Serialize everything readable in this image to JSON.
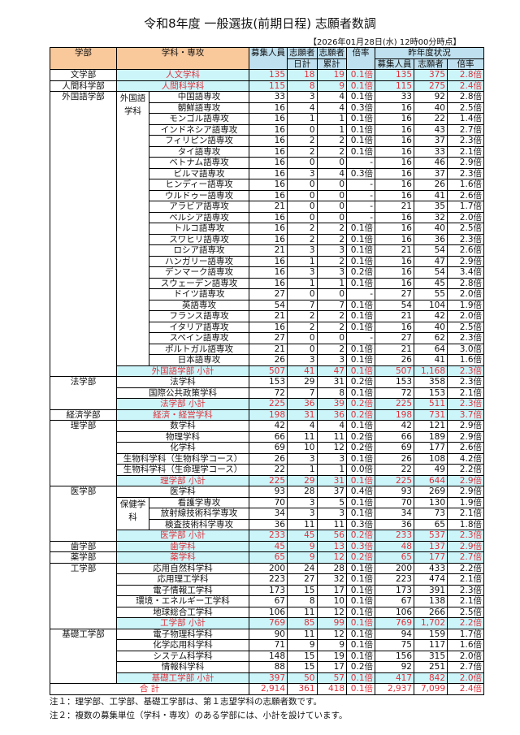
{
  "title": "令和8年度 一般選抜(前期日程) 志願者数調",
  "as_of": "【2026年01月28日(水) 12時00分時点】",
  "headers": {
    "faculty": "学部",
    "subject": "学科・専攻",
    "quota": "募集人員",
    "daily1": "志願者",
    "daily2": "日計",
    "cum1": "志願者",
    "cum2": "累計",
    "ratio": "倍率",
    "prev": "昨年度状況",
    "prev_quota": "募集人員",
    "prev_app": "志願者",
    "prev_ratio": "倍率"
  },
  "faculties": [
    {
      "name": "文学部",
      "items": [
        {
          "name": "人文学科",
          "red": true,
          "values": [
            "135",
            "18",
            "19",
            "0.1倍",
            "135",
            "375",
            "2.8倍"
          ]
        }
      ]
    },
    {
      "name": "人間科学部",
      "items": [
        {
          "name": "人間科学科",
          "red": true,
          "values": [
            "115",
            "8",
            "9",
            "0.1倍",
            "115",
            "275",
            "2.4倍"
          ]
        }
      ]
    },
    {
      "name": "外国語学部",
      "items": [
        {
          "group": "外国語学科",
          "items": [
            {
              "name": "中国語専攻",
              "values": [
                "33",
                "3",
                "4",
                "0.1倍",
                "33",
                "92",
                "2.8倍"
              ]
            },
            {
              "name": "朝鮮語専攻",
              "values": [
                "16",
                "4",
                "4",
                "0.3倍",
                "16",
                "40",
                "2.5倍"
              ]
            },
            {
              "name": "モンゴル語専攻",
              "values": [
                "16",
                "1",
                "1",
                "0.1倍",
                "16",
                "22",
                "1.4倍"
              ]
            },
            {
              "name": "インドネシア語専攻",
              "values": [
                "16",
                "0",
                "1",
                "0.1倍",
                "16",
                "43",
                "2.7倍"
              ]
            },
            {
              "name": "フィリピン語専攻",
              "values": [
                "16",
                "2",
                "2",
                "0.1倍",
                "16",
                "37",
                "2.3倍"
              ]
            },
            {
              "name": "タイ語専攻",
              "values": [
                "16",
                "2",
                "2",
                "0.1倍",
                "16",
                "33",
                "2.1倍"
              ]
            },
            {
              "name": "ベトナム語専攻",
              "values": [
                "16",
                "0",
                "0",
                "-",
                "16",
                "46",
                "2.9倍"
              ]
            },
            {
              "name": "ビルマ語専攻",
              "values": [
                "16",
                "3",
                "4",
                "0.3倍",
                "16",
                "37",
                "2.3倍"
              ]
            },
            {
              "name": "ヒンディー語専攻",
              "values": [
                "16",
                "0",
                "0",
                "-",
                "16",
                "26",
                "1.6倍"
              ]
            },
            {
              "name": "ウルドゥー語専攻",
              "values": [
                "16",
                "0",
                "0",
                "-",
                "16",
                "41",
                "2.6倍"
              ]
            },
            {
              "name": "アラビア語専攻",
              "values": [
                "21",
                "0",
                "0",
                "-",
                "21",
                "35",
                "1.7倍"
              ]
            },
            {
              "name": "ペルシア語専攻",
              "values": [
                "16",
                "0",
                "0",
                "-",
                "16",
                "32",
                "2.0倍"
              ]
            },
            {
              "name": "トルコ語専攻",
              "values": [
                "16",
                "2",
                "2",
                "0.1倍",
                "16",
                "40",
                "2.5倍"
              ]
            },
            {
              "name": "スワヒリ語専攻",
              "values": [
                "16",
                "2",
                "2",
                "0.1倍",
                "16",
                "36",
                "2.3倍"
              ]
            },
            {
              "name": "ロシア語専攻",
              "values": [
                "21",
                "3",
                "3",
                "0.1倍",
                "21",
                "54",
                "2.6倍"
              ]
            },
            {
              "name": "ハンガリー語専攻",
              "values": [
                "16",
                "1",
                "2",
                "0.1倍",
                "16",
                "47",
                "2.9倍"
              ]
            },
            {
              "name": "デンマーク語専攻",
              "values": [
                "16",
                "3",
                "3",
                "0.2倍",
                "16",
                "54",
                "3.4倍"
              ]
            },
            {
              "name": "スウェーデン語専攻",
              "values": [
                "16",
                "1",
                "1",
                "0.1倍",
                "16",
                "45",
                "2.8倍"
              ]
            },
            {
              "name": "ドイツ語専攻",
              "values": [
                "27",
                "0",
                "0",
                "-",
                "27",
                "55",
                "2.0倍"
              ]
            },
            {
              "name": "英語専攻",
              "values": [
                "54",
                "7",
                "7",
                "0.1倍",
                "54",
                "104",
                "1.9倍"
              ]
            },
            {
              "name": "フランス語専攻",
              "values": [
                "21",
                "2",
                "2",
                "0.1倍",
                "21",
                "42",
                "2.0倍"
              ]
            },
            {
              "name": "イタリア語専攻",
              "values": [
                "16",
                "2",
                "2",
                "0.1倍",
                "16",
                "40",
                "2.5倍"
              ]
            },
            {
              "name": "スペイン語専攻",
              "values": [
                "27",
                "0",
                "0",
                "-",
                "27",
                "62",
                "2.3倍"
              ]
            },
            {
              "name": "ポルトガル語専攻",
              "values": [
                "21",
                "0",
                "2",
                "0.1倍",
                "21",
                "64",
                "3.0倍"
              ]
            },
            {
              "name": "日本語専攻",
              "values": [
                "26",
                "3",
                "3",
                "0.1倍",
                "26",
                "41",
                "1.6倍"
              ]
            }
          ]
        },
        {
          "name": "外国語学部 小計",
          "red": true,
          "values": [
            "507",
            "41",
            "47",
            "0.1倍",
            "507",
            "1,168",
            "2.3倍"
          ]
        }
      ]
    },
    {
      "name": "法学部",
      "items": [
        {
          "name": "法学科",
          "values": [
            "153",
            "29",
            "31",
            "0.2倍",
            "153",
            "358",
            "2.3倍"
          ]
        },
        {
          "name": "国際公共政策学科",
          "values": [
            "72",
            "7",
            "8",
            "0.1倍",
            "72",
            "153",
            "2.1倍"
          ]
        },
        {
          "name": "法学部 小計",
          "red": true,
          "values": [
            "225",
            "36",
            "39",
            "0.2倍",
            "225",
            "511",
            "2.3倍"
          ]
        }
      ]
    },
    {
      "name": "経済学部",
      "items": [
        {
          "name": "経済・経営学科",
          "red": true,
          "values": [
            "198",
            "31",
            "36",
            "0.2倍",
            "198",
            "731",
            "3.7倍"
          ]
        }
      ]
    },
    {
      "name": "理学部",
      "items": [
        {
          "name": "数学科",
          "values": [
            "42",
            "4",
            "4",
            "0.1倍",
            "42",
            "121",
            "2.9倍"
          ]
        },
        {
          "name": "物理学科",
          "values": [
            "66",
            "11",
            "11",
            "0.2倍",
            "66",
            "189",
            "2.9倍"
          ]
        },
        {
          "name": "化学科",
          "values": [
            "69",
            "10",
            "12",
            "0.2倍",
            "69",
            "177",
            "2.6倍"
          ]
        },
        {
          "name": "生物科学科（生物科学コース）",
          "values": [
            "26",
            "3",
            "3",
            "0.1倍",
            "26",
            "108",
            "4.2倍"
          ]
        },
        {
          "name": "生物科学科（生命理学コース）",
          "values": [
            "22",
            "1",
            "1",
            "0.0倍",
            "22",
            "49",
            "2.2倍"
          ]
        },
        {
          "name": "理学部 小計",
          "red": true,
          "values": [
            "225",
            "29",
            "31",
            "0.1倍",
            "225",
            "644",
            "2.9倍"
          ]
        }
      ]
    },
    {
      "name": "医学部",
      "items": [
        {
          "name": "医学科",
          "values": [
            "93",
            "28",
            "37",
            "0.4倍",
            "93",
            "269",
            "2.9倍"
          ]
        },
        {
          "group": "保健学科",
          "items": [
            {
              "name": "看護学専攻",
              "values": [
                "70",
                "3",
                "5",
                "0.1倍",
                "70",
                "130",
                "1.9倍"
              ]
            },
            {
              "name": "放射線技術科学専攻",
              "values": [
                "34",
                "3",
                "3",
                "0.1倍",
                "34",
                "73",
                "2.1倍"
              ]
            },
            {
              "name": "検査技術科学専攻",
              "values": [
                "36",
                "11",
                "11",
                "0.3倍",
                "36",
                "65",
                "1.8倍"
              ]
            }
          ]
        },
        {
          "name": "医学部 小計",
          "red": true,
          "values": [
            "233",
            "45",
            "56",
            "0.2倍",
            "233",
            "537",
            "2.3倍"
          ]
        }
      ]
    },
    {
      "name": "歯学部",
      "items": [
        {
          "name": "歯学科",
          "red": true,
          "values": [
            "45",
            "9",
            "13",
            "0.3倍",
            "48",
            "137",
            "2.9倍"
          ]
        }
      ]
    },
    {
      "name": "薬学部",
      "items": [
        {
          "name": "薬学科",
          "red": true,
          "values": [
            "65",
            "9",
            "12",
            "0.2倍",
            "65",
            "177",
            "2.7倍"
          ]
        }
      ]
    },
    {
      "name": "工学部",
      "items": [
        {
          "name": "応用自然科学科",
          "values": [
            "200",
            "24",
            "28",
            "0.1倍",
            "200",
            "433",
            "2.2倍"
          ]
        },
        {
          "name": "応用理工学科",
          "values": [
            "223",
            "27",
            "32",
            "0.1倍",
            "223",
            "474",
            "2.1倍"
          ]
        },
        {
          "name": "電子情報工学科",
          "values": [
            "173",
            "15",
            "17",
            "0.1倍",
            "173",
            "391",
            "2.3倍"
          ]
        },
        {
          "name": "環境・エネルギー工学科",
          "values": [
            "67",
            "8",
            "10",
            "0.1倍",
            "67",
            "138",
            "2.1倍"
          ]
        },
        {
          "name": "地球総合工学科",
          "values": [
            "106",
            "11",
            "12",
            "0.1倍",
            "106",
            "266",
            "2.5倍"
          ]
        },
        {
          "name": "工学部 小計",
          "red": true,
          "values": [
            "769",
            "85",
            "99",
            "0.1倍",
            "769",
            "1,702",
            "2.2倍"
          ]
        }
      ]
    },
    {
      "name": "基礎工学部",
      "items": [
        {
          "name": "電子物理科学科",
          "values": [
            "90",
            "11",
            "12",
            "0.1倍",
            "94",
            "159",
            "1.7倍"
          ]
        },
        {
          "name": "化学応用科学科",
          "values": [
            "71",
            "9",
            "9",
            "0.1倍",
            "75",
            "117",
            "1.6倍"
          ]
        },
        {
          "name": "システム科学科",
          "values": [
            "148",
            "15",
            "19",
            "0.1倍",
            "156",
            "315",
            "2.0倍"
          ]
        },
        {
          "name": "情報科学科",
          "values": [
            "88",
            "15",
            "17",
            "0.2倍",
            "92",
            "251",
            "2.7倍"
          ]
        },
        {
          "name": "基礎工学部 小計",
          "red": true,
          "values": [
            "397",
            "50",
            "57",
            "0.1倍",
            "417",
            "842",
            "2.0倍"
          ]
        }
      ]
    }
  ],
  "total": {
    "name": "合 計",
    "values": [
      "2,914",
      "361",
      "418",
      "0.1倍",
      "2,937",
      "7,099",
      "2.4倍"
    ]
  },
  "notes": [
    "注１：理学部、工学部、基礎工学部は、第１志望学科の志願者数です。",
    "注２：複数の募集単位（学科・専攻）のある学部には、小計を設けています。"
  ],
  "colors": {
    "highlight_bg": "#ccf5fa",
    "highlight_text": "#e0303a",
    "header_orange": "#f9c89b",
    "header_blue": "#bfe0ef"
  }
}
